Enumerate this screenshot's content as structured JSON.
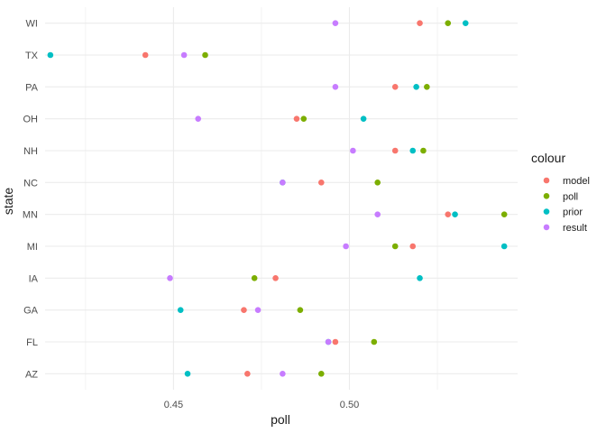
{
  "chart_data": {
    "type": "scatter",
    "xlabel": "poll",
    "ylabel": "state",
    "xlim": [
      0.4135,
      0.5478
    ],
    "x_ticks": [
      0.45,
      0.5
    ],
    "x_tick_labels": [
      "0.45",
      "0.50"
    ],
    "x_minor_ticks": [
      0.425,
      0.475,
      0.525
    ],
    "categories": [
      "AZ",
      "FL",
      "GA",
      "IA",
      "MI",
      "MN",
      "NC",
      "NH",
      "OH",
      "PA",
      "TX",
      "WI"
    ],
    "grid": true,
    "legend_position": "right",
    "legend_title": "colour",
    "series": [
      {
        "name": "model",
        "color": "#F8766D",
        "values": [
          0.471,
          0.496,
          0.47,
          0.479,
          0.518,
          0.528,
          0.492,
          0.513,
          0.485,
          0.513,
          0.442,
          0.52
        ]
      },
      {
        "name": "poll",
        "color": "#7CAE00",
        "values": [
          0.492,
          0.507,
          0.486,
          0.473,
          0.513,
          0.544,
          0.508,
          0.521,
          0.487,
          0.522,
          0.459,
          0.528
        ]
      },
      {
        "name": "prior",
        "color": "#00BFC4",
        "values": [
          0.454,
          0.494,
          0.452,
          0.52,
          0.544,
          0.53,
          0.481,
          0.518,
          0.504,
          0.519,
          0.415,
          0.533
        ]
      },
      {
        "name": "result",
        "color": "#C77CFF",
        "values": [
          0.481,
          0.494,
          0.474,
          0.449,
          0.499,
          0.508,
          0.481,
          0.501,
          0.457,
          0.496,
          0.453,
          0.496
        ]
      }
    ]
  }
}
